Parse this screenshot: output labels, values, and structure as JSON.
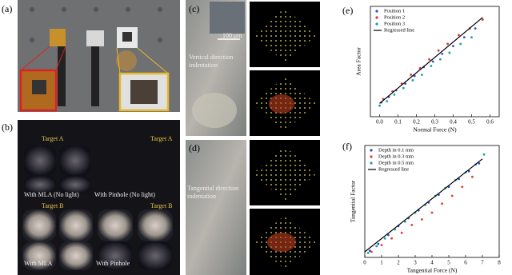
{
  "panels": {
    "a": {
      "label": "(a)"
    },
    "b": {
      "label": "(b)",
      "texts": [
        "Target A",
        "Target A",
        "With MLA (No light)",
        "With Pinhole (No light)",
        "Target B",
        "Target B",
        "With MLA",
        "With Pinhole"
      ]
    },
    "c": {
      "label": "(c)",
      "scale": "100 μm",
      "lines": [
        "Vertical direction",
        "indentation"
      ]
    },
    "d": {
      "label": "(d)",
      "lines": [
        "Tangential direction",
        "indentation"
      ]
    },
    "e": {
      "label": "(e)"
    },
    "f": {
      "label": "(f)"
    }
  },
  "chart_data": [
    {
      "type": "scatter",
      "x_label": "Normal Force (N)",
      "y_label": "Area Factor",
      "xlim": [
        -0.05,
        0.65
      ],
      "xticks": [
        {
          "value": 0,
          "label": "0.0"
        },
        0.1,
        0.2,
        0.3,
        0.4,
        0.5,
        0.6
      ],
      "ylim": [
        0,
        1
      ],
      "legend": "upper-left",
      "series": [
        {
          "name": "Position 1",
          "color": "#2b4fcf",
          "x": [
            0.01,
            0.05,
            0.09,
            0.14,
            0.19,
            0.24,
            0.29,
            0.34,
            0.4,
            0.46,
            0.52
          ],
          "values": [
            0.13,
            0.18,
            0.24,
            0.3,
            0.37,
            0.45,
            0.5,
            0.57,
            0.64,
            0.72,
            0.8
          ]
        },
        {
          "name": "Position 2",
          "color": "#e03030",
          "x": [
            0.02,
            0.07,
            0.12,
            0.17,
            0.22,
            0.27,
            0.32,
            0.37,
            0.43,
            0.49,
            0.56
          ],
          "values": [
            0.16,
            0.23,
            0.3,
            0.38,
            0.44,
            0.52,
            0.6,
            0.66,
            0.74,
            0.8,
            0.88
          ]
        },
        {
          "name": "Position 3",
          "color": "#1a9fa0",
          "x": [
            0.0,
            0.04,
            0.08,
            0.13,
            0.18,
            0.23,
            0.28,
            0.33,
            0.38,
            0.44,
            0.5
          ],
          "values": [
            0.1,
            0.14,
            0.2,
            0.26,
            0.33,
            0.38,
            0.46,
            0.52,
            0.58,
            0.66,
            0.72
          ]
        },
        {
          "name": "Regressed line",
          "color": "#000000",
          "mode": "line",
          "x": [
            0.0,
            0.56
          ],
          "values": [
            0.12,
            0.9
          ]
        }
      ]
    },
    {
      "type": "scatter",
      "x_label": "Tangential Force (N)",
      "y_label": "Tangential Factor",
      "xlim": [
        0,
        8
      ],
      "xticks": [
        0,
        1,
        2,
        3,
        4,
        5,
        6,
        7,
        8
      ],
      "ylim": [
        0,
        1
      ],
      "legend": "upper-left",
      "series": [
        {
          "name": "Depth in 0.1 mm",
          "color": "#2a4bd0",
          "x": [
            0.3,
            0.8,
            1.4,
            2.0,
            2.6,
            3.2,
            3.8,
            4.4,
            5.0,
            5.6,
            6.2,
            6.8
          ],
          "values": [
            0.06,
            0.12,
            0.2,
            0.28,
            0.35,
            0.42,
            0.49,
            0.56,
            0.63,
            0.7,
            0.77,
            0.84
          ]
        },
        {
          "name": "Depth in 0.3 mm",
          "color": "#e03a3a",
          "x": [
            0.4,
            1.0,
            1.6,
            2.2,
            2.8,
            3.4,
            4.0,
            4.6,
            5.2,
            5.8,
            6.4
          ],
          "values": [
            0.05,
            0.11,
            0.17,
            0.22,
            0.29,
            0.34,
            0.4,
            0.48,
            0.55,
            0.63,
            0.72
          ]
        },
        {
          "name": "Depth in 0.5 mm",
          "color": "#20a0a0",
          "x": [
            0.2,
            0.7,
            1.2,
            1.8,
            2.4,
            3.0,
            3.6,
            4.2,
            4.8,
            5.4,
            6.0,
            6.6,
            7.1
          ],
          "values": [
            0.04,
            0.1,
            0.17,
            0.25,
            0.32,
            0.4,
            0.47,
            0.55,
            0.62,
            0.69,
            0.76,
            0.83,
            0.92
          ]
        },
        {
          "name": "Regressed line",
          "color": "#000000",
          "mode": "line",
          "x": [
            0.0,
            7.0
          ],
          "values": [
            0.05,
            0.88
          ]
        }
      ]
    }
  ]
}
